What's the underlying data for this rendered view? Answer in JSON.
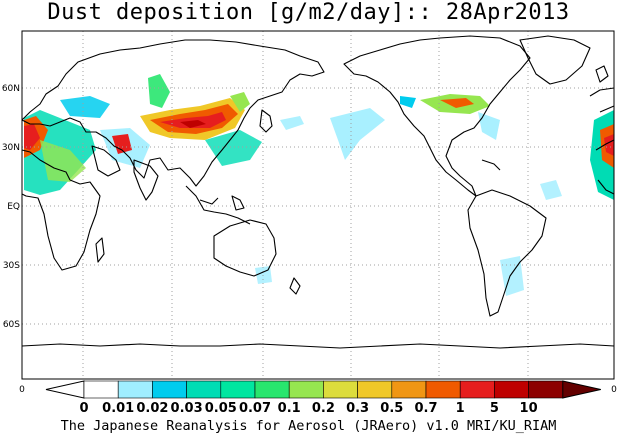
{
  "title": "Dust deposition [g/m2/day]:: 28Apr2013",
  "footer": "The Japanese Reanalysis for Aerosol (JRAero) v1.0 MRI/KU_RIAM",
  "latitude_labels": [
    "60N",
    "30N",
    "EQ",
    "30S",
    "60S"
  ],
  "axis_end_labels": {
    "left": "0",
    "right": "0"
  },
  "colorbar": {
    "labels": [
      "0",
      "0.01",
      "0.02",
      "0.03",
      "0.05",
      "0.07",
      "0.1",
      "0.2",
      "0.3",
      "0.5",
      "0.7",
      "1",
      "5",
      "10"
    ],
    "colors": [
      "#ffffff",
      "#a0eeff",
      "#00ccee",
      "#00dcb4",
      "#00e6a0",
      "#28e66e",
      "#96e650",
      "#dcdc3c",
      "#f0c828",
      "#f09614",
      "#f05a00",
      "#e61e1e",
      "#be0000",
      "#8c0000",
      "#640000"
    ]
  }
}
